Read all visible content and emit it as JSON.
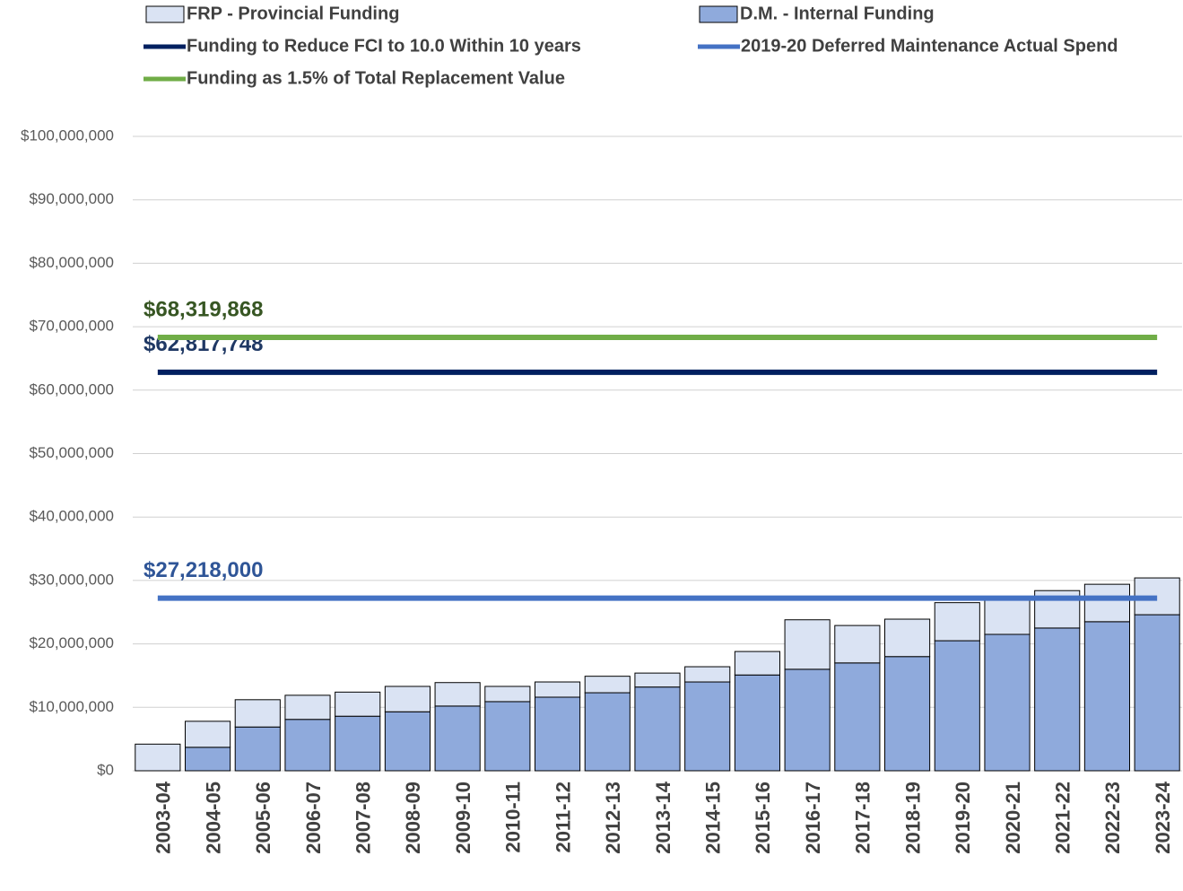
{
  "chart_data": {
    "type": "bar",
    "stacked": true,
    "categories": [
      "2003-04",
      "2004-05",
      "2005-06",
      "2006-07",
      "2007-08",
      "2008-09",
      "2009-10",
      "2010-11",
      "2011-12",
      "2012-13",
      "2013-14",
      "2014-15",
      "2015-16",
      "2016-17",
      "2017-18",
      "2018-19",
      "2019-20",
      "2020-21",
      "2021-22",
      "2022-23",
      "2023-24"
    ],
    "series": [
      {
        "name": "D.M. - Internal Funding",
        "color": "#8faadc",
        "values": [
          0,
          3700000,
          6900000,
          8100000,
          8600000,
          9300000,
          10200000,
          10900000,
          11600000,
          12300000,
          13200000,
          14000000,
          15100000,
          16000000,
          17000000,
          18000000,
          20500000,
          21500000,
          22500000,
          23500000,
          24600000
        ]
      },
      {
        "name": "FRP - Provincial Funding",
        "color": "#dae3f3",
        "values": [
          4200000,
          4100000,
          4300000,
          3800000,
          3800000,
          4000000,
          3700000,
          2400000,
          2400000,
          2600000,
          2200000,
          2400000,
          3700000,
          7800000,
          5900000,
          5900000,
          6000000,
          5800000,
          5900000,
          5900000,
          5800000
        ]
      }
    ],
    "reference_lines": [
      {
        "name": "Funding to Reduce FCI to 10.0 Within 10 years",
        "color": "#002060",
        "label_color": "#1f3864",
        "value": 62817748,
        "value_label": "$62,817,748"
      },
      {
        "name": "2019-20 Deferred Maintenance Actual Spend",
        "color": "#4472c4",
        "label_color": "#2f5597",
        "value": 27218000,
        "value_label": "$27,218,000"
      },
      {
        "name": "Funding as 1.5% of Total Replacement Value",
        "color": "#70ad47",
        "label_color": "#375623",
        "value": 68319868,
        "value_label": "$68,319,868"
      }
    ],
    "ylim": [
      0,
      100000000
    ],
    "yticks": [
      {
        "value": 0,
        "label": "$0"
      },
      {
        "value": 10000000,
        "label": "$10,000,000"
      },
      {
        "value": 20000000,
        "label": "$20,000,000"
      },
      {
        "value": 30000000,
        "label": "$30,000,000"
      },
      {
        "value": 40000000,
        "label": "$40,000,000"
      },
      {
        "value": 50000000,
        "label": "$50,000,000"
      },
      {
        "value": 60000000,
        "label": "$60,000,000"
      },
      {
        "value": 70000000,
        "label": "$70,000,000"
      },
      {
        "value": 80000000,
        "label": "$80,000,000"
      },
      {
        "value": 90000000,
        "label": "$90,000,000"
      },
      {
        "value": 100000000,
        "label": "$100,000,000"
      }
    ],
    "grid": true,
    "legend": "top"
  }
}
